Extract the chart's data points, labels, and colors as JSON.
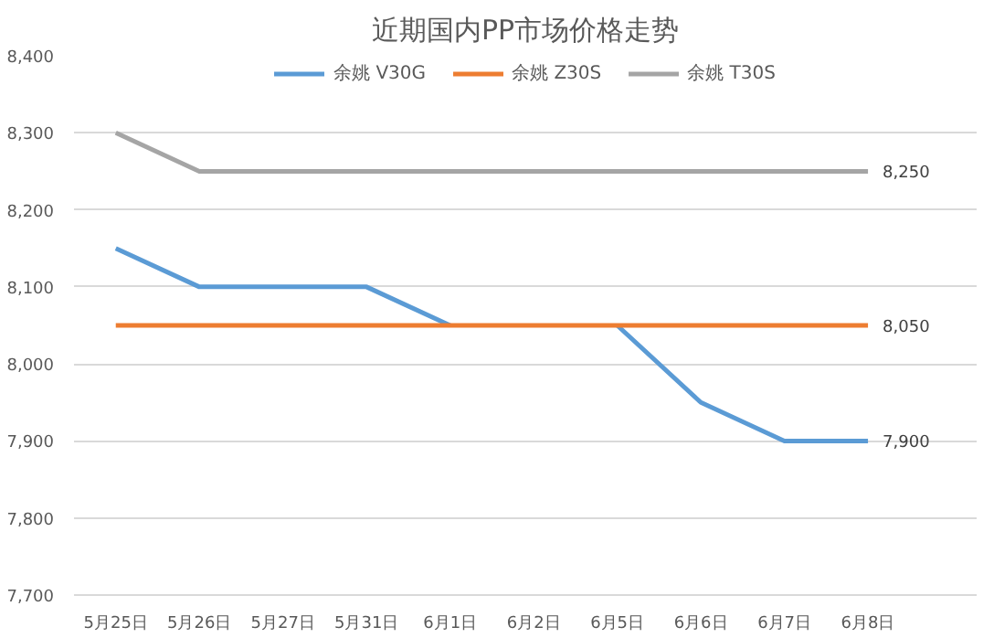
{
  "chart_data": {
    "type": "line",
    "title": "近期国内PP市场价格走势",
    "categories": [
      "5月25日",
      "5月26日",
      "5月27日",
      "5月31日",
      "6月1日",
      "6月2日",
      "6月5日",
      "6月6日",
      "6月7日",
      "6月8日"
    ],
    "series": [
      {
        "name": "余姚 V30G",
        "color": "#5b9bd5",
        "values": [
          8150,
          8100,
          8100,
          8100,
          8050,
          null,
          8050,
          7950,
          7900,
          7900
        ],
        "value_labels": [
          null,
          null,
          null,
          null,
          null,
          null,
          null,
          null,
          null,
          "7,900"
        ]
      },
      {
        "name": "余姚 Z30S",
        "color": "#ed7d31",
        "values": [
          8050,
          8050,
          8050,
          8050,
          8050,
          8050,
          8050,
          8050,
          8050,
          8050
        ],
        "value_labels": [
          null,
          null,
          null,
          null,
          null,
          null,
          null,
          null,
          null,
          "8,050"
        ]
      },
      {
        "name": "余姚 T30S",
        "color": "#a5a5a5",
        "values": [
          8300,
          8250,
          8250,
          8250,
          8250,
          8250,
          8250,
          8250,
          8250,
          8250
        ],
        "value_labels": [
          null,
          null,
          null,
          null,
          null,
          null,
          null,
          null,
          null,
          "8,250"
        ]
      }
    ],
    "ylim": [
      7700,
      8400
    ],
    "yticks": [
      {
        "value": 7700,
        "label": "7,700"
      },
      {
        "value": 7800,
        "label": "7,800"
      },
      {
        "value": 7900,
        "label": "7,900"
      },
      {
        "value": 8000,
        "label": "8,000"
      },
      {
        "value": 8100,
        "label": "8,100"
      },
      {
        "value": 8200,
        "label": "8,200"
      },
      {
        "value": 8300,
        "label": "8,300"
      },
      {
        "value": 8400,
        "label": "8,400"
      }
    ],
    "grid": "y",
    "legend": "top",
    "marker": "none",
    "line_style": "solid"
  }
}
